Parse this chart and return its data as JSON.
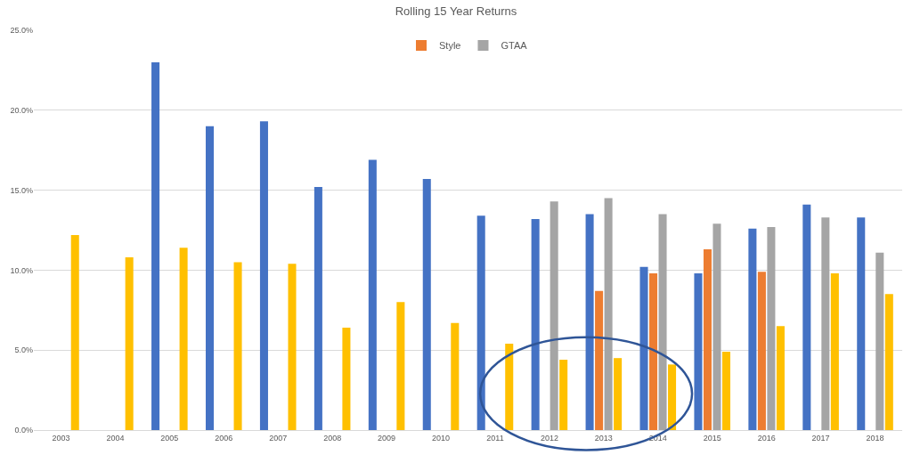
{
  "chart_data": {
    "type": "bar",
    "title": "Rolling 15 Year Returns",
    "categories": [
      "2003",
      "2004",
      "2005",
      "2006",
      "2007",
      "2008",
      "2009",
      "2010",
      "2011",
      "2012",
      "2013",
      "2014",
      "2015",
      "2016",
      "2017",
      "2018"
    ],
    "series": [
      {
        "color": "#4472c4",
        "values": [
          null,
          null,
          23.0,
          19.0,
          19.3,
          15.2,
          16.9,
          15.7,
          13.4,
          13.2,
          13.5,
          10.2,
          9.8,
          12.6,
          14.1,
          13.3
        ]
      },
      {
        "name": "Style",
        "color": "#ed7d31",
        "values": [
          null,
          null,
          null,
          null,
          null,
          null,
          null,
          null,
          null,
          null,
          8.7,
          9.8,
          11.3,
          9.9,
          null,
          null
        ]
      },
      {
        "name": "GTAA",
        "color": "#a5a5a5",
        "values": [
          null,
          null,
          null,
          null,
          null,
          null,
          null,
          null,
          null,
          14.3,
          14.5,
          13.5,
          12.9,
          12.7,
          13.3,
          11.1
        ]
      },
      {
        "color": "#ffc000",
        "values": [
          12.2,
          10.8,
          11.4,
          10.5,
          10.4,
          6.4,
          8.0,
          6.7,
          5.4,
          4.4,
          4.5,
          4.1,
          4.9,
          6.5,
          9.8,
          8.5
        ]
      }
    ],
    "ylim": [
      0,
      25
    ],
    "yticks": [
      {
        "value": 0,
        "label": "0.0%"
      },
      {
        "value": 5,
        "label": "5.0%"
      },
      {
        "value": 10,
        "label": "10.0%"
      },
      {
        "value": 15,
        "label": "15.0%"
      },
      {
        "value": 20,
        "label": "20.0%"
      },
      {
        "value": 25,
        "label": "25.0%"
      }
    ],
    "grid": "y",
    "legend": "top"
  }
}
